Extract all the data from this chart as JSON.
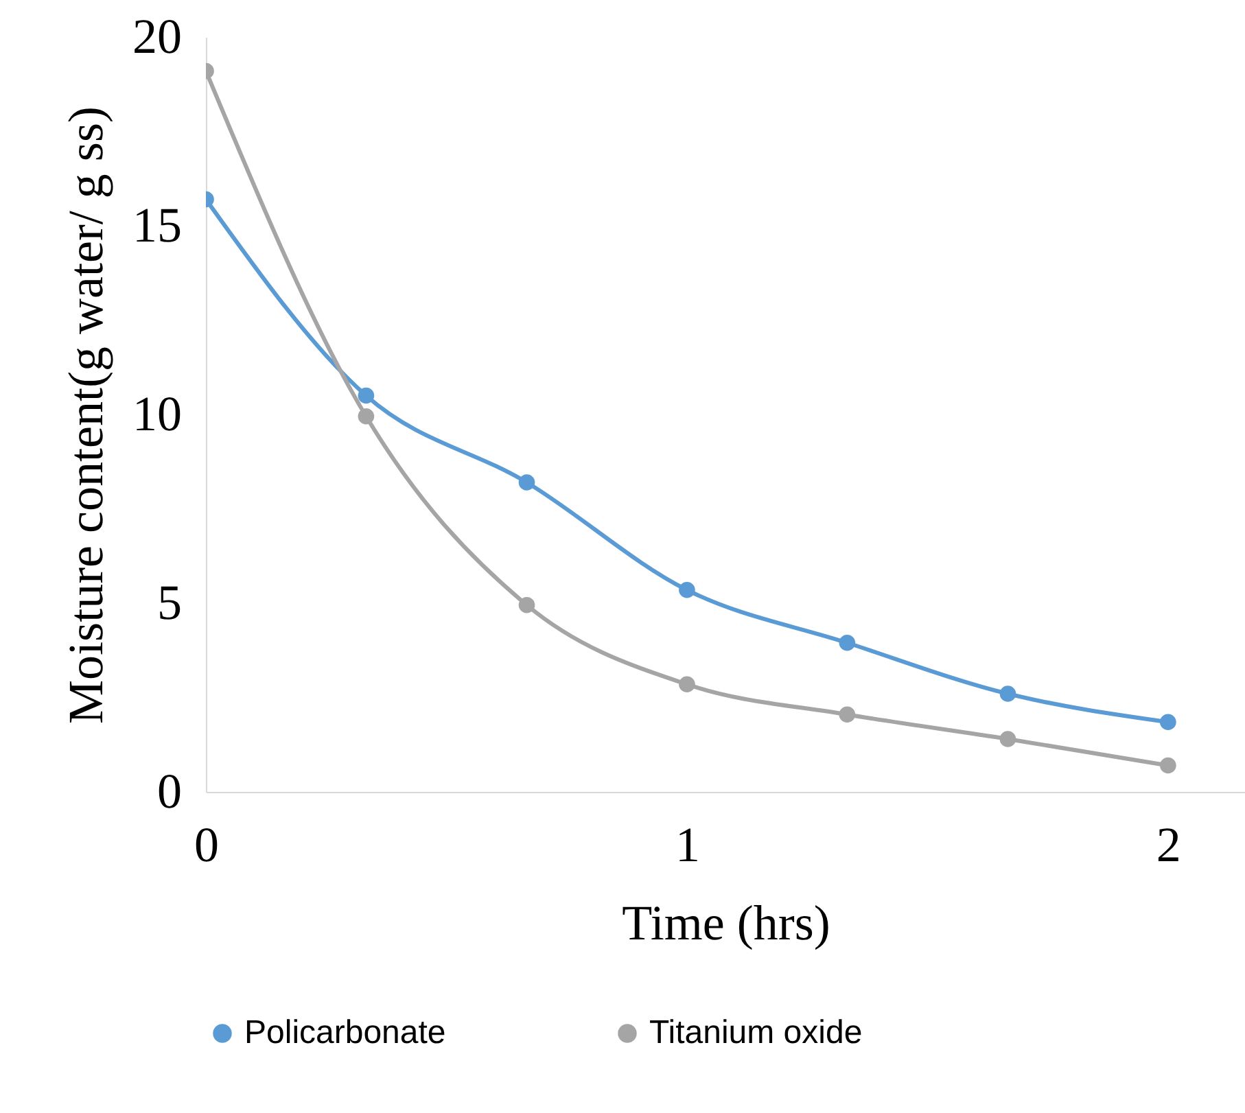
{
  "chart_data": {
    "type": "line",
    "xlabel": "Time (hrs)",
    "ylabel": "Moisture content(g water/ g ss)",
    "series": [
      {
        "name": "Policarbonate",
        "color": "#5b9bd5",
        "x": [
          0,
          0.333,
          0.667,
          1,
          1.333,
          1.667,
          2
        ],
        "values": [
          15.7,
          10.5,
          8.2,
          5.35,
          3.95,
          2.6,
          1.85
        ]
      },
      {
        "name": "Titanium oxide",
        "color": "#a5a5a5",
        "x": [
          0,
          0.333,
          0.667,
          1,
          1.333,
          1.667,
          2
        ],
        "values": [
          19.1,
          9.95,
          4.95,
          2.85,
          2.05,
          1.4,
          0.7
        ]
      }
    ],
    "xlim": [
      0,
      2.16
    ],
    "xticks": [
      0,
      1,
      2
    ],
    "ylim": [
      0,
      20
    ],
    "yticks": [
      0,
      5,
      10,
      15,
      20
    ],
    "grid": false,
    "legend": "bottom",
    "marker": "circle",
    "line_style": "solid"
  }
}
